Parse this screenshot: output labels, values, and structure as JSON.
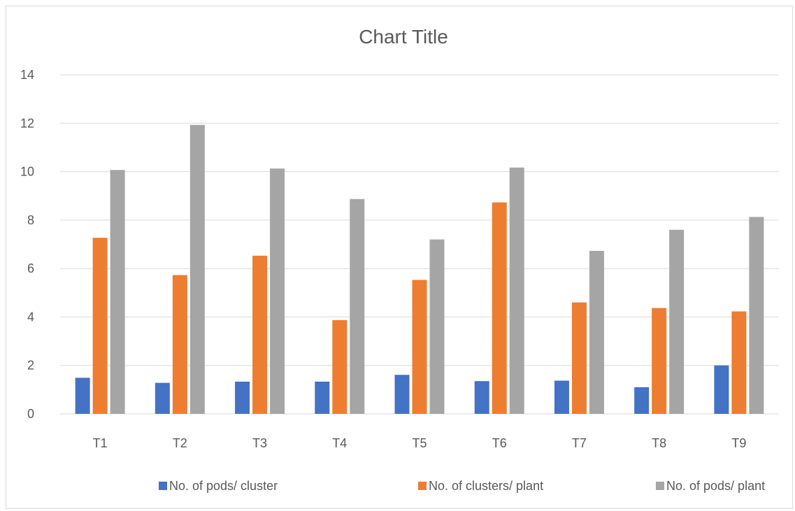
{
  "chart_data": {
    "type": "bar",
    "title": "Chart Title",
    "xlabel": "",
    "ylabel": "",
    "ylim": [
      0,
      14
    ],
    "yticks": [
      0,
      2,
      4,
      6,
      8,
      10,
      12,
      14
    ],
    "grid": true,
    "legend_position": "bottom",
    "categories": [
      "T1",
      "T2",
      "T3",
      "T4",
      "T5",
      "T6",
      "T7",
      "T8",
      "T9"
    ],
    "series": [
      {
        "name": "No. of pods/ cluster",
        "color": "#4472c4",
        "values": [
          1.49,
          1.28,
          1.33,
          1.33,
          1.61,
          1.35,
          1.37,
          1.1,
          2.0
        ]
      },
      {
        "name": "No. of clusters/ plant",
        "color": "#ed7d31",
        "values": [
          7.27,
          5.73,
          6.53,
          3.87,
          5.53,
          8.73,
          4.6,
          4.37,
          4.23
        ]
      },
      {
        "name": "No. of pods/ plant",
        "color": "#a5a5a5",
        "values": [
          10.07,
          11.93,
          10.13,
          8.87,
          7.2,
          10.17,
          6.73,
          7.6,
          8.13
        ]
      }
    ]
  }
}
